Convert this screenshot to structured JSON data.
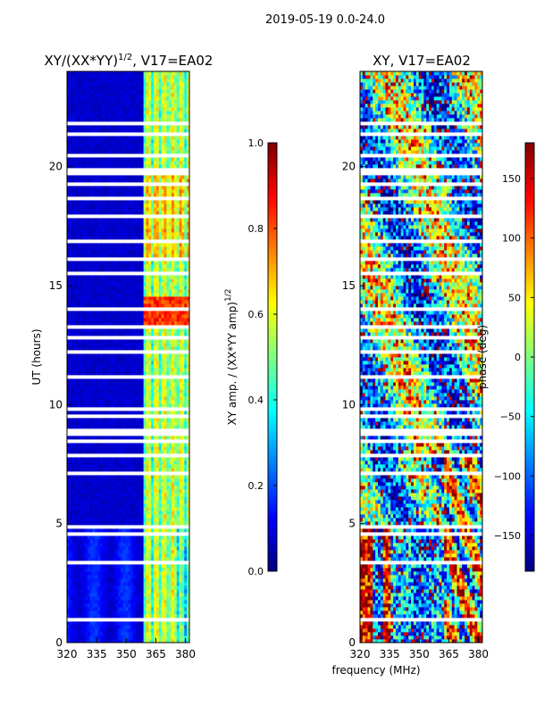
{
  "figure": {
    "suptitle": "2019-05-19 0.0-24.0",
    "xlabel": "frequency (MHz)"
  },
  "colors": {
    "jet": [
      "#00007f",
      "#0000ff",
      "#007fff",
      "#00ffff",
      "#7fff7f",
      "#ffff00",
      "#ff7f00",
      "#ff0000",
      "#7f0000"
    ],
    "gap": "#ffffff"
  },
  "chart_data": [
    {
      "type": "heatmap",
      "title": "XY/(XX*YY)",
      "title_exp": "1/2",
      "title_suffix": ", V17=EA02",
      "xlabel": "",
      "ylabel": "UT (hours)",
      "xlim": [
        320,
        382
      ],
      "ylim": [
        0,
        24
      ],
      "xticks": [
        "320",
        "335",
        "350",
        "365",
        "380"
      ],
      "yticks": [
        "0",
        "5",
        "10",
        "15",
        "20"
      ],
      "colorbar": {
        "label": "XY amp. / (XX*YY amp)",
        "label_exp": "1/2",
        "range": [
          0.0,
          1.0
        ],
        "ticks": [
          "0.0",
          "0.2",
          "0.4",
          "0.6",
          "0.8",
          "1.0"
        ]
      },
      "description": "amplitude ratio mostly low (~0.05) below 359 MHz, elevated (0.3-0.7) in 359-382 MHz band; peak ~0.85 near 13.5-14.5 UT"
    },
    {
      "type": "heatmap",
      "title": "XY, V17=EA02",
      "xlabel": "frequency (MHz)",
      "ylabel": "",
      "xlim": [
        320,
        382
      ],
      "ylim": [
        0,
        24
      ],
      "xticks": [
        "320",
        "335",
        "350",
        "365",
        "380"
      ],
      "yticks": [
        "0",
        "5",
        "10",
        "15",
        "20"
      ],
      "colorbar": {
        "label": "phase (deg)",
        "range": [
          -180,
          180
        ],
        "ticks": [
          "-150",
          "-100",
          "-50",
          "0",
          "50",
          "100",
          "150"
        ]
      },
      "description": "XY phase, noisy -180 to 180 deg; mostly around -100 to 0 deg with red patches above 8 UT"
    }
  ]
}
